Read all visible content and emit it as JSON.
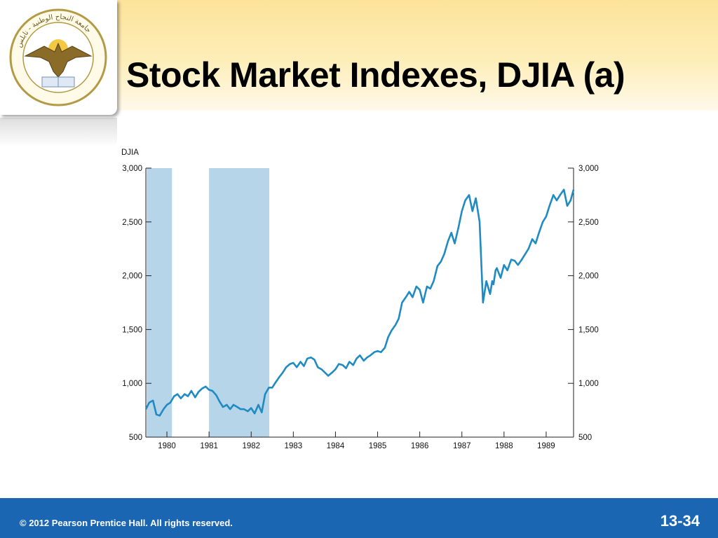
{
  "slide": {
    "title": "Stock Market Indexes, DJIA (a)",
    "footer_copyright": "© 2012 Pearson Prentice Hall. All rights reserved.",
    "slide_number": "13-34",
    "colors": {
      "header_gradient_top": "#fde39a",
      "footer_blue": "#1b66b3",
      "line_color": "#1f8bc2",
      "recession_shade": "#b6d5e9"
    }
  },
  "logo": {
    "icon": "university-seal-icon",
    "lettering": "جامعة النجاح الوطنية - نابلس"
  },
  "chart_data": {
    "type": "line",
    "ylabel": "DJIA",
    "ylim": [
      500,
      3000
    ],
    "y_ticks": [
      "500",
      "1,000",
      "1,500",
      "2,000",
      "2,500",
      "3,000"
    ],
    "y_tick_values": [
      500,
      1000,
      1500,
      2000,
      2500,
      3000
    ],
    "x_ticks": [
      "1980",
      "1981",
      "1982",
      "1983",
      "1984",
      "1985",
      "1986",
      "1987",
      "1988",
      "1989"
    ],
    "x_tick_values": [
      1980,
      1981,
      1982,
      1983,
      1984,
      1985,
      1986,
      1987,
      1988,
      1989
    ],
    "xlim": [
      1979.5,
      1989.65
    ],
    "grid": false,
    "secondary_right_axis": true,
    "shaded_periods": [
      [
        1979.52,
        1980.12
      ],
      [
        1981.0,
        1982.43
      ]
    ],
    "series": [
      {
        "x": [
          1979.5,
          1979.58,
          1979.67,
          1979.75,
          1979.83,
          1979.92,
          1980.0,
          1980.08,
          1980.17,
          1980.25,
          1980.33,
          1980.42,
          1980.5,
          1980.58,
          1980.67,
          1980.75,
          1980.83,
          1980.92,
          1981.0,
          1981.08,
          1981.17,
          1981.25,
          1981.33,
          1981.42,
          1981.5,
          1981.58,
          1981.67,
          1981.75,
          1981.83,
          1981.92,
          1982.0,
          1982.08,
          1982.17,
          1982.25,
          1982.33,
          1982.42,
          1982.5,
          1982.58,
          1982.67,
          1982.75,
          1982.83,
          1982.92,
          1983.0,
          1983.08,
          1983.17,
          1983.25,
          1983.33,
          1983.42,
          1983.5,
          1983.58,
          1983.67,
          1983.75,
          1983.83,
          1983.92,
          1984.0,
          1984.08,
          1984.17,
          1984.25,
          1984.33,
          1984.42,
          1984.5,
          1984.58,
          1984.67,
          1984.75,
          1984.83,
          1984.92,
          1985.0,
          1985.08,
          1985.17,
          1985.25,
          1985.33,
          1985.42,
          1985.5,
          1985.58,
          1985.67,
          1985.75,
          1985.83,
          1985.92,
          1986.0,
          1986.08,
          1986.17,
          1986.25,
          1986.33,
          1986.42,
          1986.5,
          1986.58,
          1986.67,
          1986.75,
          1986.83,
          1986.92,
          1987.0,
          1987.08,
          1987.17,
          1987.25,
          1987.33,
          1987.42,
          1987.5,
          1987.58,
          1987.67,
          1987.72,
          1987.75,
          1987.8,
          1987.83,
          1987.92,
          1988.0,
          1988.08,
          1988.17,
          1988.25,
          1988.33,
          1988.42,
          1988.5,
          1988.58,
          1988.67,
          1988.75,
          1988.83,
          1988.92,
          1989.0,
          1989.08,
          1989.17,
          1989.25,
          1989.33,
          1989.42,
          1989.5,
          1989.58,
          1989.65
        ],
        "values": [
          760,
          820,
          840,
          710,
          700,
          760,
          800,
          820,
          880,
          900,
          860,
          900,
          880,
          930,
          870,
          920,
          950,
          970,
          940,
          930,
          890,
          830,
          780,
          800,
          760,
          800,
          780,
          760,
          760,
          740,
          770,
          720,
          800,
          730,
          900,
          960,
          960,
          1010,
          1060,
          1100,
          1150,
          1180,
          1190,
          1150,
          1200,
          1160,
          1230,
          1240,
          1220,
          1150,
          1130,
          1100,
          1070,
          1100,
          1130,
          1180,
          1170,
          1140,
          1200,
          1170,
          1230,
          1260,
          1210,
          1240,
          1260,
          1290,
          1300,
          1290,
          1330,
          1430,
          1490,
          1540,
          1600,
          1750,
          1800,
          1850,
          1800,
          1900,
          1870,
          1750,
          1900,
          1880,
          1950,
          2090,
          2130,
          2200,
          2320,
          2400,
          2300,
          2450,
          2600,
          2700,
          2750,
          2600,
          2720,
          2500,
          1750,
          1950,
          1830,
          1950,
          1920,
          2050,
          2070,
          1980,
          2100,
          2050,
          2150,
          2140,
          2100,
          2150,
          2200,
          2250,
          2340,
          2300,
          2400,
          2500,
          2550,
          2650,
          2750,
          2700,
          2750,
          2800,
          2650,
          2700,
          2800
        ]
      }
    ]
  }
}
